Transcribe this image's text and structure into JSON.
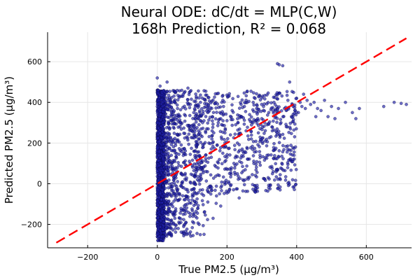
{
  "chart_data": {
    "type": "scatter",
    "title": "Neural ODE: dC/dt = MLP(C,W)",
    "subtitle": "168h Prediction, R² = 0.068",
    "xlabel": "True PM2.5 (µg/m³)",
    "ylabel": "Predicted PM2.5 (µg/m³)",
    "xlim": [
      -315,
      730
    ],
    "ylim": [
      -315,
      745
    ],
    "xticks": [
      -200,
      0,
      200,
      400,
      600
    ],
    "yticks": [
      -200,
      0,
      200,
      400,
      600
    ],
    "grid": true,
    "legend": "none",
    "reference_line": {
      "type": "y=x",
      "color": "#ff0000",
      "style": "dashed",
      "x_range": [
        -290,
        715
      ]
    },
    "colors": {
      "points": "#1f1ea8",
      "reference": "#ff0000"
    },
    "series": [
      {
        "values": [
          [
            0,
            -260
          ],
          [
            0,
            -200
          ],
          [
            0,
            -150
          ],
          [
            0,
            -80
          ],
          [
            0,
            0
          ],
          [
            0,
            80
          ],
          [
            0,
            150
          ],
          [
            0,
            230
          ],
          [
            0,
            300
          ],
          [
            0,
            380
          ],
          [
            0,
            460
          ],
          [
            0,
            520
          ],
          [
            2,
            -230
          ],
          [
            3,
            40
          ],
          [
            4,
            360
          ],
          [
            5,
            -120
          ],
          [
            6,
            270
          ],
          [
            8,
            480
          ],
          [
            9,
            -50
          ],
          [
            10,
            190
          ],
          [
            12,
            -180
          ],
          [
            14,
            420
          ],
          [
            15,
            60
          ],
          [
            18,
            -240
          ],
          [
            20,
            330
          ],
          [
            22,
            120
          ],
          [
            25,
            -90
          ],
          [
            28,
            500
          ],
          [
            30,
            250
          ],
          [
            32,
            -20
          ],
          [
            35,
            -200
          ],
          [
            38,
            400
          ],
          [
            40,
            140
          ],
          [
            42,
            310
          ],
          [
            45,
            -150
          ],
          [
            48,
            30
          ],
          [
            50,
            450
          ],
          [
            52,
            200
          ],
          [
            55,
            -60
          ],
          [
            58,
            370
          ],
          [
            60,
            -220
          ],
          [
            62,
            90
          ],
          [
            65,
            280
          ],
          [
            68,
            -10
          ],
          [
            70,
            430
          ],
          [
            72,
            170
          ],
          [
            75,
            -130
          ],
          [
            78,
            340
          ],
          [
            80,
            50
          ],
          [
            82,
            -190
          ],
          [
            85,
            230
          ],
          [
            88,
            470
          ],
          [
            90,
            -80
          ],
          [
            92,
            110
          ],
          [
            95,
            390
          ],
          [
            98,
            -30
          ],
          [
            100,
            260
          ],
          [
            102,
            -160
          ],
          [
            105,
            160
          ],
          [
            108,
            320
          ],
          [
            110,
            -100
          ],
          [
            112,
            420
          ],
          [
            115,
            20
          ],
          [
            118,
            240
          ],
          [
            120,
            -200
          ],
          [
            122,
            350
          ],
          [
            125,
            80
          ],
          [
            128,
            -50
          ],
          [
            130,
            300
          ],
          [
            132,
            180
          ],
          [
            135,
            -140
          ],
          [
            138,
            410
          ],
          [
            140,
            60
          ],
          [
            142,
            270
          ],
          [
            145,
            -90
          ],
          [
            148,
            200
          ],
          [
            150,
            360
          ],
          [
            152,
            -20
          ],
          [
            155,
            130
          ],
          [
            158,
            330
          ],
          [
            160,
            -170
          ],
          [
            162,
            250
          ],
          [
            165,
            90
          ],
          [
            168,
            400
          ],
          [
            170,
            -60
          ],
          [
            172,
            190
          ],
          [
            175,
            300
          ],
          [
            178,
            40
          ],
          [
            180,
            350
          ],
          [
            182,
            -110
          ],
          [
            185,
            220
          ],
          [
            188,
            150
          ],
          [
            190,
            380
          ],
          [
            195,
            270
          ],
          [
            200,
            310
          ],
          [
            205,
            -40
          ],
          [
            210,
            240
          ],
          [
            215,
            360
          ],
          [
            220,
            100
          ],
          [
            225,
            290
          ],
          [
            230,
            200
          ],
          [
            235,
            -70
          ],
          [
            240,
            330
          ],
          [
            245,
            160
          ],
          [
            250,
            380
          ],
          [
            255,
            260
          ],
          [
            260,
            30
          ],
          [
            265,
            340
          ],
          [
            270,
            220
          ],
          [
            275,
            300
          ],
          [
            280,
            -10
          ],
          [
            285,
            370
          ],
          [
            290,
            250
          ],
          [
            295,
            140
          ],
          [
            300,
            320
          ],
          [
            305,
            380
          ],
          [
            310,
            210
          ],
          [
            315,
            290
          ],
          [
            320,
            350
          ],
          [
            330,
            260
          ],
          [
            335,
            400
          ],
          [
            340,
            330
          ],
          [
            345,
            590
          ],
          [
            350,
            585
          ],
          [
            355,
            300
          ],
          [
            360,
            580
          ],
          [
            365,
            370
          ],
          [
            370,
            360
          ],
          [
            375,
            410
          ],
          [
            380,
            500
          ],
          [
            385,
            330
          ],
          [
            390,
            380
          ],
          [
            395,
            360
          ],
          [
            400,
            420
          ],
          [
            405,
            350
          ],
          [
            410,
            400
          ],
          [
            415,
            380
          ],
          [
            420,
            440
          ],
          [
            425,
            370
          ],
          [
            430,
            410
          ],
          [
            440,
            390
          ],
          [
            450,
            400
          ],
          [
            455,
            330
          ],
          [
            460,
            370
          ],
          [
            470,
            360
          ],
          [
            480,
            410
          ],
          [
            490,
            330
          ],
          [
            500,
            380
          ],
          [
            510,
            320
          ],
          [
            520,
            370
          ],
          [
            540,
            400
          ],
          [
            560,
            350
          ],
          [
            570,
            320
          ],
          [
            580,
            370
          ],
          [
            650,
            380
          ],
          [
            680,
            400
          ],
          [
            700,
            395
          ],
          [
            715,
            390
          ]
        ]
      }
    ]
  }
}
